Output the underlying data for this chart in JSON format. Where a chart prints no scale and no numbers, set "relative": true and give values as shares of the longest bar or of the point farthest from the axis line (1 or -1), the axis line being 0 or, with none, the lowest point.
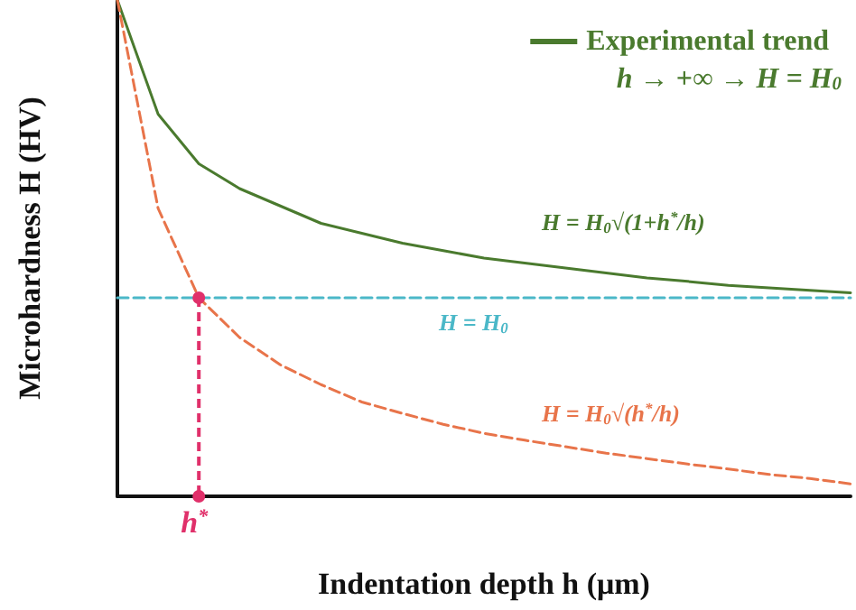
{
  "chart_data": {
    "type": "line",
    "relative": true,
    "xlabel": "Indentation depth h (μm)",
    "ylabel": "Microhardness H (HV)",
    "categories": [
      null,
      null,
      null,
      null,
      null,
      null,
      null,
      null,
      null,
      null,
      null,
      null,
      null,
      null,
      null,
      null,
      null,
      null,
      null
    ],
    "series": [
      {
        "name": "Experimental trend",
        "color": "#4a7a2e",
        "values": [
          1.0,
          0.77,
          0.67,
          0.62,
          0.585,
          0.55,
          0.53,
          0.51,
          0.495,
          0.48,
          0.47,
          0.46,
          0.45,
          0.44,
          0.433,
          0.425,
          0.42,
          0.415,
          0.41
        ]
      },
      {
        "color": "#e8744a",
        "line_style": "dashed",
        "values": [
          1.0,
          0.58,
          0.4,
          0.32,
          0.265,
          0.225,
          0.19,
          0.167,
          0.145,
          0.127,
          0.113,
          0.1,
          0.087,
          0.076,
          0.065,
          0.055,
          0.044,
          0.036,
          0.025
        ]
      },
      {
        "name": "H = H$_{0}$",
        "color": "#4bb8c8",
        "line_style": "dashed",
        "values": [
          0.4,
          0.4,
          0.4,
          0.4,
          0.4,
          0.4,
          0.4,
          0.4,
          0.4,
          0.4,
          0.4,
          0.4,
          0.4,
          0.4,
          0.4,
          0.4,
          0.4,
          0.4,
          0.4
        ]
      }
    ],
    "annotations": [
      "h → +∞ → H = H$_{0}$",
      "H = H$_{0}$√(1+h$^{*}$/h)",
      "H = H$_{0}$√(h$^{*}$/h)",
      "h$^{*}$"
    ],
    "legend": "top right",
    "grid": false
  }
}
